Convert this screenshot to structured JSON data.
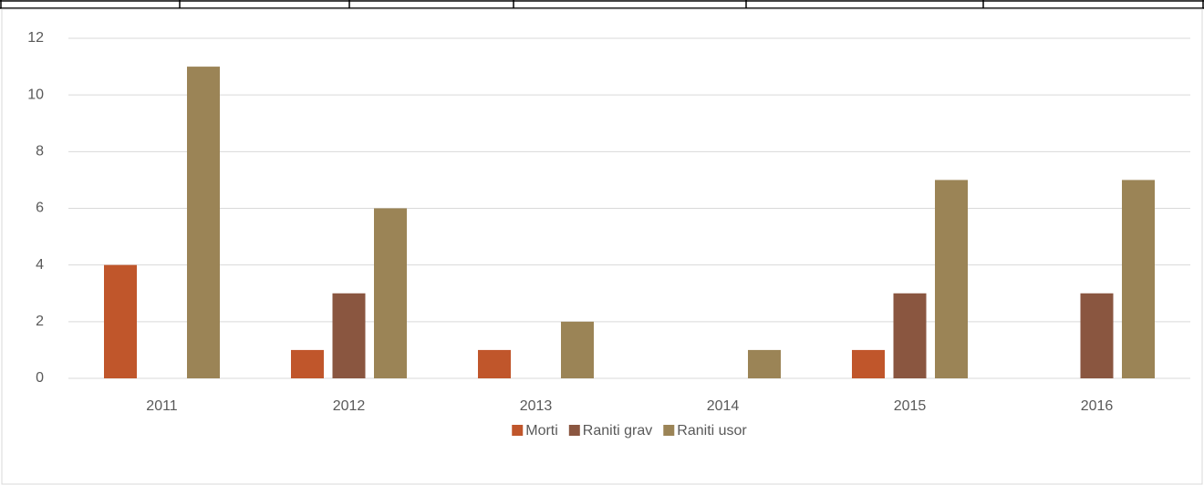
{
  "chart_data": {
    "type": "bar",
    "categories": [
      "2011",
      "2012",
      "2013",
      "2014",
      "2015",
      "2016"
    ],
    "series": [
      {
        "name": "Morti",
        "color": "#c0562b",
        "values": [
          4,
          1,
          1,
          0,
          1,
          0
        ]
      },
      {
        "name": "Raniti grav",
        "color": "#8a5640",
        "values": [
          0,
          3,
          0,
          0,
          3,
          3
        ]
      },
      {
        "name": "Raniti usor",
        "color": "#9b8456",
        "values": [
          11,
          6,
          2,
          1,
          7,
          7
        ]
      }
    ],
    "ylim": [
      0,
      12
    ],
    "yticks": [
      0,
      2,
      4,
      6,
      8,
      10,
      12
    ],
    "grid": true,
    "legend": "bottom"
  }
}
